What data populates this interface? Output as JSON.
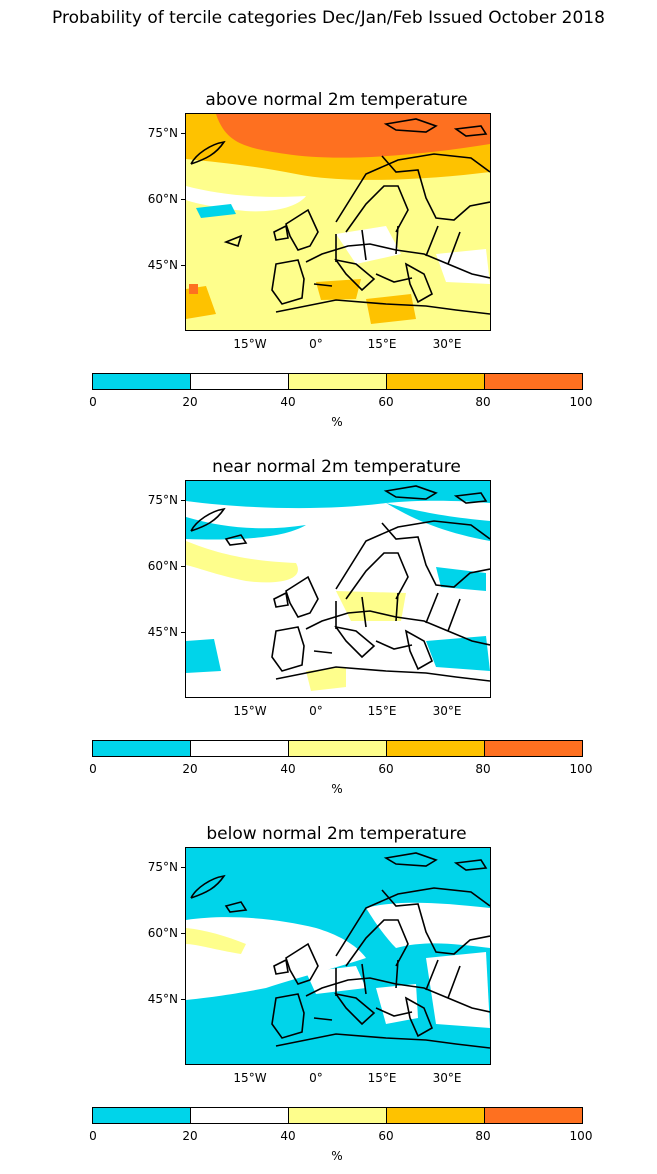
{
  "title": "Probability of tercile categories Dec/Jan/Feb Issued October 2018",
  "panels": [
    {
      "title": "above normal 2m temperature",
      "dominant": "#fefe8c"
    },
    {
      "title": "near normal 2m temperature",
      "dominant": "#ffffff"
    },
    {
      "title": "below normal 2m temperature",
      "dominant": "#00d4ea"
    }
  ],
  "lat_labels": [
    "75°N",
    "60°N",
    "45°N"
  ],
  "lon_labels": [
    "15°W",
    "0°",
    "15°E",
    "30°E"
  ],
  "colorbar": {
    "ticks": [
      "0",
      "20",
      "40",
      "60",
      "80",
      "100"
    ],
    "unit": "%",
    "colors": [
      "#00d4ea",
      "#ffffff",
      "#fefe8c",
      "#fec200",
      "#fe7020"
    ]
  }
}
